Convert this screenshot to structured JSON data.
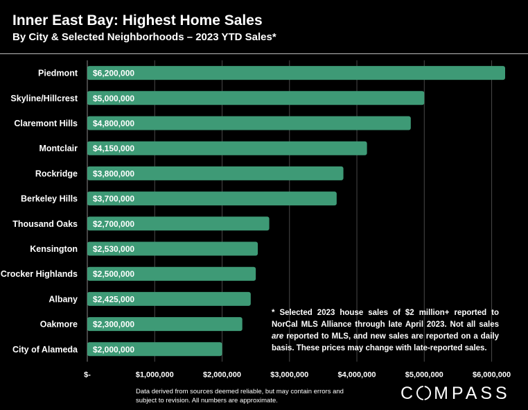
{
  "header": {
    "title": "Inner East Bay: Highest Home Sales",
    "subtitle": "By City & Selected Neighborhoods – 2023 YTD Sales*"
  },
  "chart_data": {
    "type": "bar",
    "orientation": "horizontal",
    "categories": [
      "Piedmont",
      "Skyline/Hillcrest",
      "Claremont Hills",
      "Montclair",
      "Rockridge",
      "Berkeley Hills",
      "Thousand Oaks",
      "Kensington",
      "Crocker Highlands",
      "Albany",
      "Oakmore",
      "City of Alameda"
    ],
    "values": [
      6200000,
      5000000,
      4800000,
      4150000,
      3800000,
      3700000,
      2700000,
      2530000,
      2500000,
      2425000,
      2300000,
      2000000
    ],
    "data_labels": [
      "$6,200,000",
      "$5,000,000",
      "$4,800,000",
      "$4,150,000",
      "$3,800,000",
      "$3,700,000",
      "$2,700,000",
      "$2,530,000",
      "$2,500,000",
      "$2,425,000",
      "$2,300,000",
      "$2,000,000"
    ],
    "xlim": [
      0,
      6200000
    ],
    "xticks": [
      0,
      1000000,
      2000000,
      3000000,
      4000000,
      5000000,
      6000000
    ],
    "xtick_labels": [
      "$-",
      "$1,000,000",
      "$2,000,000",
      "$3,000,000",
      "$4,000,000",
      "$5,000,000",
      "$6,000,000"
    ],
    "grid": true,
    "bar_color": "#3e9a76",
    "grid_color": "#4a4a4a"
  },
  "note": {
    "line_start": "* Selected 2023 house sales of $2 million+ reported to NorCal MLS Alliance through late April 2023. Not all sales ",
    "emphasis": "are",
    "line_end": " reported to MLS, and new sales are reported on a daily basis. These prices may change with late-reported sales."
  },
  "footer": {
    "disclaimer": "Data derived from sources deemed reliable, but may contain errors and subject to revision. All numbers are approximate."
  },
  "logo": {
    "part1": "C",
    "part2": "MPASS"
  }
}
